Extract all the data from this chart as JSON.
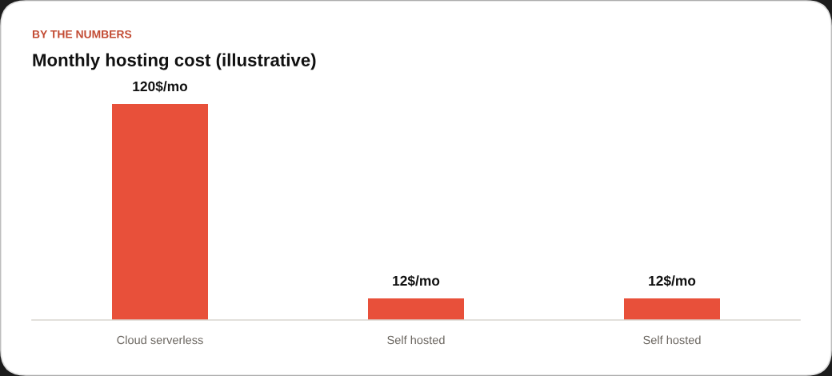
{
  "chart_data": {
    "type": "bar",
    "subtitle": "BY THE NUMBERS",
    "title": "Monthly hosting cost (illustrative)",
    "categories": [
      "Cloud serverless",
      "Self hosted",
      "Self hosted"
    ],
    "values": [
      120,
      12,
      12
    ],
    "value_labels": [
      "120$/mo",
      "12$/mo",
      "12$/mo"
    ],
    "color": "#e8503a"
  }
}
